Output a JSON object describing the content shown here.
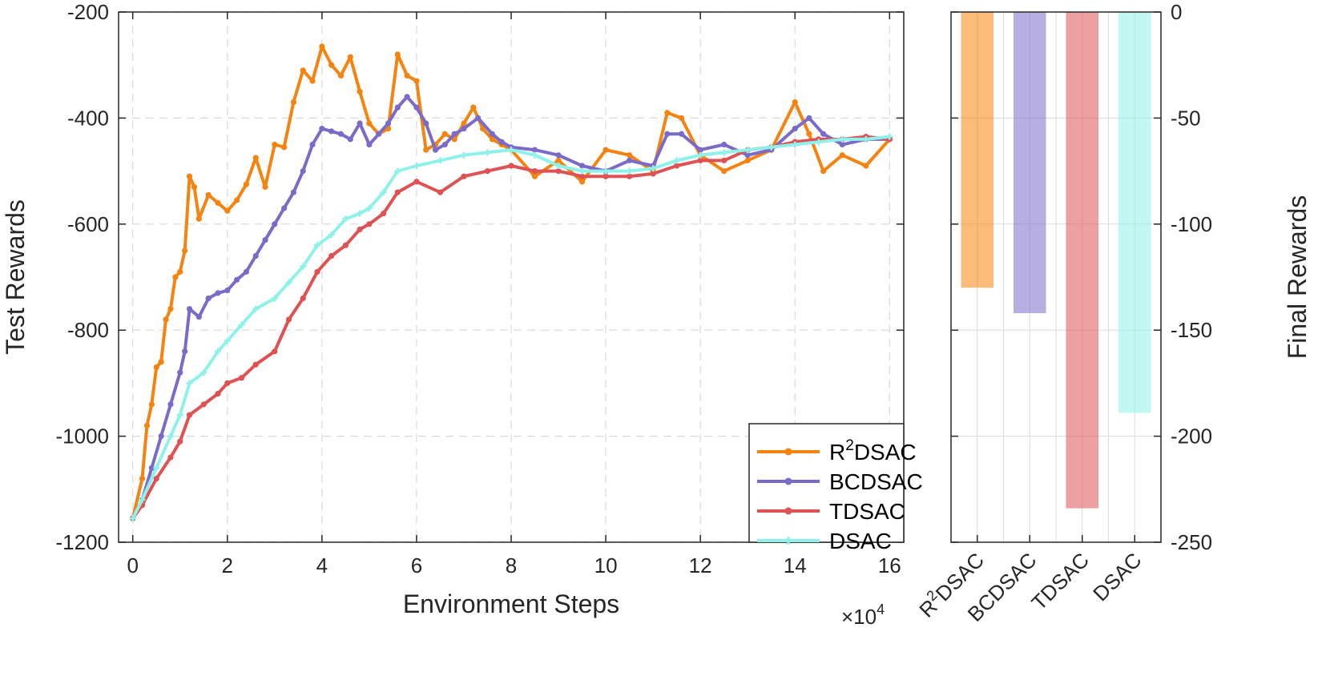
{
  "colors": {
    "r2dsac": "#f5830f",
    "bcdsac": "#7b6bc9",
    "tdsac": "#de5253",
    "dsac": "#8ff2ea"
  },
  "chart_data": [
    {
      "type": "line",
      "xlabel": "Environment Steps",
      "ylabel": "Test Rewards",
      "x_exponent_label": "×10",
      "x_exponent_power": "4",
      "xlim": [
        -0.3,
        16.3
      ],
      "ylim": [
        -1200,
        -200
      ],
      "xticks": [
        0,
        2,
        4,
        6,
        8,
        10,
        12,
        14,
        16
      ],
      "yticks": [
        -1200,
        -1000,
        -800,
        -600,
        -400,
        -200
      ],
      "grid": true,
      "legend_position": "bottom-right",
      "series": [
        {
          "name": "R²DSAC",
          "legend_main": "R",
          "legend_sup": "2",
          "legend_rest": "DSAC",
          "color_key": "r2dsac",
          "x": [
            0,
            0.2,
            0.3,
            0.4,
            0.5,
            0.6,
            0.7,
            0.8,
            0.9,
            1.0,
            1.1,
            1.2,
            1.3,
            1.4,
            1.6,
            1.8,
            2.0,
            2.2,
            2.4,
            2.6,
            2.8,
            3.0,
            3.2,
            3.4,
            3.6,
            3.8,
            4.0,
            4.2,
            4.4,
            4.6,
            4.8,
            5.0,
            5.2,
            5.4,
            5.6,
            5.8,
            6.0,
            6.2,
            6.4,
            6.6,
            6.8,
            7.0,
            7.2,
            7.4,
            7.6,
            7.8,
            8.0,
            8.5,
            9.0,
            9.5,
            10.0,
            10.5,
            11.0,
            11.3,
            11.6,
            12.0,
            12.5,
            13.0,
            13.5,
            14.0,
            14.3,
            14.6,
            15.0,
            15.5,
            16.0
          ],
          "y": [
            -1155,
            -1080,
            -980,
            -940,
            -870,
            -860,
            -780,
            -760,
            -700,
            -690,
            -650,
            -510,
            -530,
            -590,
            -545,
            -560,
            -575,
            -555,
            -525,
            -475,
            -530,
            -450,
            -455,
            -370,
            -310,
            -330,
            -265,
            -300,
            -320,
            -285,
            -350,
            -410,
            -430,
            -420,
            -280,
            -320,
            -330,
            -460,
            -450,
            -430,
            -440,
            -410,
            -380,
            -420,
            -440,
            -450,
            -460,
            -510,
            -480,
            -520,
            -460,
            -470,
            -500,
            -390,
            -400,
            -470,
            -500,
            -480,
            -460,
            -370,
            -430,
            -500,
            -470,
            -490,
            -440
          ]
        },
        {
          "name": "BCDSAC",
          "color_key": "bcdsac",
          "x": [
            0,
            0.2,
            0.4,
            0.6,
            0.8,
            1.0,
            1.1,
            1.2,
            1.4,
            1.6,
            1.8,
            2.0,
            2.2,
            2.4,
            2.6,
            2.8,
            3.0,
            3.2,
            3.4,
            3.6,
            3.8,
            4.0,
            4.2,
            4.4,
            4.6,
            4.8,
            5.0,
            5.2,
            5.4,
            5.6,
            5.8,
            6.0,
            6.2,
            6.4,
            6.6,
            6.8,
            7.0,
            7.3,
            7.6,
            7.8,
            8.0,
            8.5,
            9.0,
            9.5,
            10.0,
            10.5,
            11.0,
            11.3,
            11.6,
            12.0,
            12.5,
            13.0,
            13.5,
            14.0,
            14.3,
            14.6,
            15.0,
            15.5,
            16.0
          ],
          "y": [
            -1155,
            -1120,
            -1060,
            -1000,
            -940,
            -880,
            -840,
            -760,
            -775,
            -740,
            -730,
            -725,
            -705,
            -690,
            -660,
            -630,
            -600,
            -570,
            -540,
            -500,
            -450,
            -420,
            -425,
            -430,
            -440,
            -410,
            -450,
            -430,
            -410,
            -380,
            -360,
            -380,
            -410,
            -460,
            -450,
            -430,
            -420,
            -400,
            -430,
            -445,
            -455,
            -460,
            -470,
            -490,
            -500,
            -480,
            -490,
            -430,
            -430,
            -460,
            -450,
            -470,
            -460,
            -420,
            -400,
            -430,
            -450,
            -440,
            -440
          ]
        },
        {
          "name": "TDSAC",
          "color_key": "tdsac",
          "x": [
            0,
            0.2,
            0.5,
            0.8,
            1.0,
            1.2,
            1.5,
            1.8,
            2.0,
            2.3,
            2.6,
            3.0,
            3.3,
            3.6,
            3.9,
            4.2,
            4.5,
            4.8,
            5.0,
            5.3,
            5.6,
            6.0,
            6.5,
            7.0,
            7.5,
            8.0,
            8.5,
            9.0,
            9.5,
            10.0,
            10.5,
            11.0,
            11.5,
            12.0,
            12.5,
            13.0,
            13.5,
            14.0,
            14.5,
            15.0,
            15.5,
            16.0
          ],
          "y": [
            -1155,
            -1130,
            -1080,
            -1040,
            -1010,
            -960,
            -940,
            -920,
            -900,
            -890,
            -865,
            -840,
            -780,
            -740,
            -690,
            -660,
            -640,
            -610,
            -600,
            -580,
            -540,
            -520,
            -540,
            -510,
            -500,
            -490,
            -500,
            -500,
            -510,
            -510,
            -510,
            -505,
            -490,
            -480,
            -480,
            -460,
            -455,
            -445,
            -440,
            -440,
            -435,
            -440
          ]
        },
        {
          "name": "DSAC",
          "color_key": "dsac",
          "x": [
            0,
            0.2,
            0.5,
            0.8,
            1.0,
            1.2,
            1.5,
            1.8,
            2.0,
            2.3,
            2.6,
            3.0,
            3.3,
            3.6,
            3.9,
            4.2,
            4.5,
            4.8,
            5.0,
            5.3,
            5.6,
            6.0,
            6.5,
            7.0,
            7.5,
            8.0,
            8.5,
            9.0,
            9.5,
            10.0,
            10.5,
            11.0,
            11.5,
            12.0,
            12.5,
            13.0,
            13.5,
            14.0,
            14.5,
            15.0,
            15.5,
            16.0
          ],
          "y": [
            -1155,
            -1120,
            -1060,
            -1000,
            -960,
            -900,
            -880,
            -840,
            -820,
            -790,
            -760,
            -740,
            -710,
            -680,
            -640,
            -620,
            -590,
            -580,
            -570,
            -540,
            -500,
            -490,
            -480,
            -470,
            -465,
            -460,
            -470,
            -490,
            -500,
            -500,
            -500,
            -495,
            -480,
            -470,
            -465,
            -460,
            -455,
            -450,
            -445,
            -440,
            -440,
            -435
          ]
        }
      ]
    },
    {
      "type": "bar",
      "ylabel": "Final Rewards",
      "categories": [
        "R²DSAC",
        "BCDSAC",
        "TDSAC",
        "DSAC"
      ],
      "category_labels": [
        {
          "main": "R",
          "sup": "2",
          "rest": "DSAC"
        },
        {
          "main": "BCDSAC",
          "sup": "",
          "rest": ""
        },
        {
          "main": "TDSAC",
          "sup": "",
          "rest": ""
        },
        {
          "main": "DSAC",
          "sup": "",
          "rest": ""
        }
      ],
      "values": [
        -130,
        -142,
        -234,
        -189
      ],
      "color_keys": [
        "r2dsac",
        "bcdsac",
        "tdsac",
        "dsac"
      ],
      "ylim": [
        -250,
        0
      ],
      "yticks": [
        -250,
        -200,
        -150,
        -100,
        -50,
        0
      ],
      "y_axis_side": "right",
      "grid": true
    }
  ]
}
